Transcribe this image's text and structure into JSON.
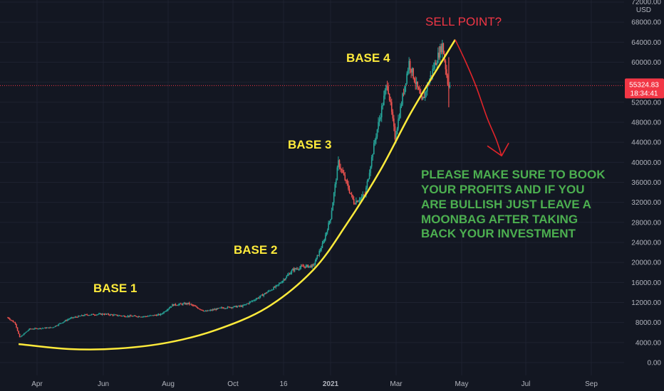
{
  "chart_data": {
    "type": "candlestick",
    "title": "",
    "currency": "USD",
    "x_ticks": [
      "Apr",
      "Jun",
      "Aug",
      "Oct",
      "16",
      "2021",
      "Mar",
      "May",
      "Jul",
      "Sep"
    ],
    "y_ticks": [
      0,
      4000,
      8000,
      12000,
      16000,
      20000,
      24000,
      28000,
      32000,
      36000,
      40000,
      44000,
      48000,
      52000,
      56000,
      60000,
      64000,
      68000,
      72000
    ],
    "y_tick_labels": [
      "0.00",
      "4000.00",
      "8000.00",
      "12000.00",
      "16000.00",
      "20000.00",
      "24000.00",
      "28000.00",
      "32000.00",
      "36000.00",
      "40000.00",
      "44000.00",
      "48000.00",
      "52000.00",
      "56000.00",
      "60000.00",
      "64000.00",
      "68000.00",
      "72000.00"
    ],
    "ylim": [
      0,
      72000
    ],
    "current_price": "55324.83",
    "countdown": "18:34:41",
    "up_color": "#26a69a",
    "down_color": "#ef5350",
    "price_series": [
      {
        "date": "2020-03-05",
        "value": 9000
      },
      {
        "date": "2020-03-12",
        "value": 7800
      },
      {
        "date": "2020-03-16",
        "value": 5000
      },
      {
        "date": "2020-03-25",
        "value": 6700
      },
      {
        "date": "2020-04-15",
        "value": 7000
      },
      {
        "date": "2020-05-01",
        "value": 8800
      },
      {
        "date": "2020-05-15",
        "value": 9500
      },
      {
        "date": "2020-06-01",
        "value": 9700
      },
      {
        "date": "2020-06-20",
        "value": 9300
      },
      {
        "date": "2020-07-10",
        "value": 9200
      },
      {
        "date": "2020-07-25",
        "value": 9600
      },
      {
        "date": "2020-08-05",
        "value": 11500
      },
      {
        "date": "2020-08-20",
        "value": 11800
      },
      {
        "date": "2020-09-05",
        "value": 10200
      },
      {
        "date": "2020-09-20",
        "value": 10900
      },
      {
        "date": "2020-10-10",
        "value": 11300
      },
      {
        "date": "2020-10-25",
        "value": 13100
      },
      {
        "date": "2020-11-10",
        "value": 15300
      },
      {
        "date": "2020-11-25",
        "value": 18500
      },
      {
        "date": "2020-12-05",
        "value": 19200
      },
      {
        "date": "2020-12-15",
        "value": 19300
      },
      {
        "date": "2020-12-25",
        "value": 24000
      },
      {
        "date": "2021-01-01",
        "value": 29000
      },
      {
        "date": "2021-01-08",
        "value": 40000
      },
      {
        "date": "2021-01-15",
        "value": 36000
      },
      {
        "date": "2021-01-22",
        "value": 32000
      },
      {
        "date": "2021-02-01",
        "value": 33500
      },
      {
        "date": "2021-02-10",
        "value": 44500
      },
      {
        "date": "2021-02-21",
        "value": 56000
      },
      {
        "date": "2021-02-28",
        "value": 45000
      },
      {
        "date": "2021-03-13",
        "value": 60000
      },
      {
        "date": "2021-03-25",
        "value": 52000
      },
      {
        "date": "2021-04-05",
        "value": 59000
      },
      {
        "date": "2021-04-13",
        "value": 63500
      },
      {
        "date": "2021-04-18",
        "value": 56000
      },
      {
        "date": "2021-04-20",
        "value": 55324.83
      }
    ],
    "support_curve": [
      {
        "date": "2020-03-15",
        "value": 3700
      },
      {
        "date": "2020-05-01",
        "value": 2700
      },
      {
        "date": "2020-06-15",
        "value": 2800
      },
      {
        "date": "2020-08-01",
        "value": 4000
      },
      {
        "date": "2020-09-15",
        "value": 6500
      },
      {
        "date": "2020-11-01",
        "value": 11000
      },
      {
        "date": "2020-12-15",
        "value": 18500
      },
      {
        "date": "2021-01-15",
        "value": 27500
      },
      {
        "date": "2021-02-15",
        "value": 38500
      },
      {
        "date": "2021-03-15",
        "value": 50000
      },
      {
        "date": "2021-04-15",
        "value": 61000
      },
      {
        "date": "2021-04-25",
        "value": 64500
      }
    ],
    "projection": [
      {
        "date": "2021-04-25",
        "value": 64500
      },
      {
        "date": "2021-05-05",
        "value": 60000
      },
      {
        "date": "2021-05-15",
        "value": 55000
      },
      {
        "date": "2021-05-25",
        "value": 49000
      },
      {
        "date": "2021-06-03",
        "value": 44500
      },
      {
        "date": "2021-06-08",
        "value": 41300
      }
    ],
    "annotations": {
      "base1": "BASE 1",
      "base2": "BASE 2",
      "base3": "BASE 3",
      "base4": "BASE 4",
      "sell": "SELL POINT?",
      "note": [
        "PLEASE MAKE SURE TO BOOK",
        "YOUR PROFITS AND IF YOU",
        "ARE BULLISH JUST LEAVE A",
        "MOONBAG AFTER TAKING",
        "BACK YOUR INVESTMENT"
      ]
    }
  }
}
